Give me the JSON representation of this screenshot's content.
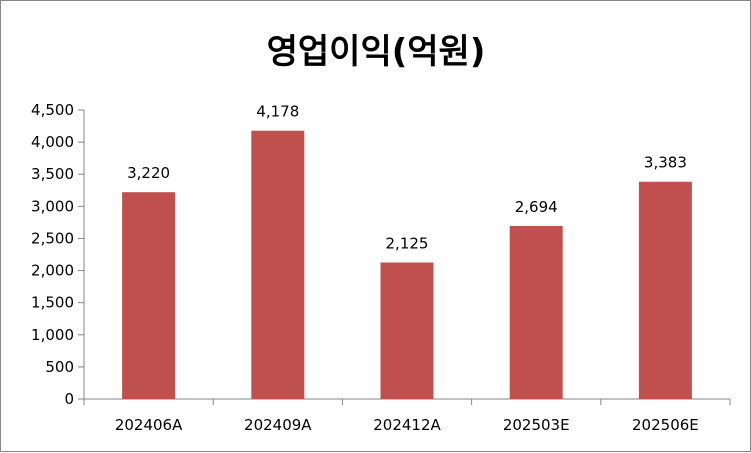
{
  "chart_data": {
    "type": "bar",
    "title": "영업이익(억원)",
    "categories": [
      "202406A",
      "202409A",
      "202412A",
      "202503E",
      "202506E"
    ],
    "values": [
      3220,
      4178,
      2125,
      2694,
      3383
    ],
    "value_labels": [
      "3,220",
      "4,178",
      "2,125",
      "2,694",
      "3,383"
    ],
    "ylim": [
      0,
      4500
    ],
    "yticks": [
      0,
      500,
      1000,
      1500,
      2000,
      2500,
      3000,
      3500,
      4000,
      4500
    ],
    "ytick_labels": [
      "0",
      "500",
      "1,000",
      "1,500",
      "2,000",
      "2,500",
      "3,000",
      "3,500",
      "4,000",
      "4,500"
    ],
    "grid": false,
    "legend": "none",
    "bar_color": "#C0504D"
  }
}
